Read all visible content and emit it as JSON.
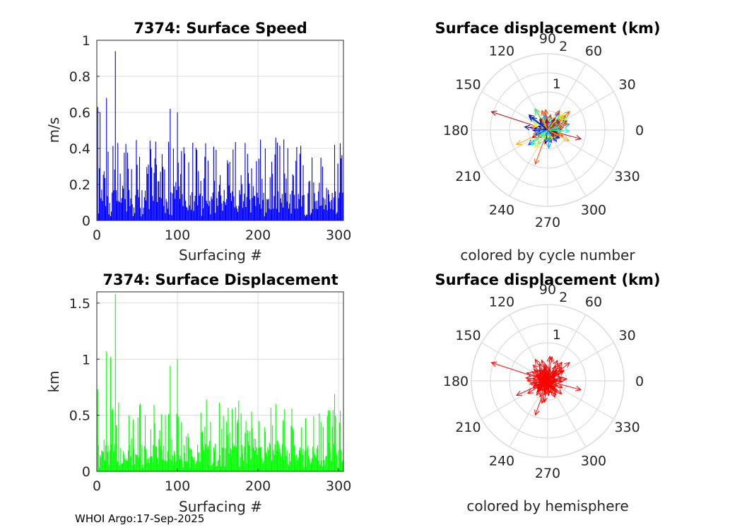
{
  "footer": "WHOI Argo:17-Sep-2025",
  "colors": {
    "speed_bars": "#0000ff",
    "displacement_bars": "#00ff00",
    "hemisphere_arrows": "#ff0000",
    "grid": "#dcdcdc",
    "axis": "#262626",
    "cycle_colormap": [
      "#0000aa",
      "#0044ff",
      "#00aaff",
      "#00ffcc",
      "#88ff44",
      "#ffee00",
      "#ffaa00",
      "#ff4400",
      "#cc0000"
    ]
  },
  "chart_data": [
    {
      "id": "speed",
      "type": "bar",
      "title": "7374: Surface Speed",
      "xlabel": "Surfacing #",
      "ylabel": "m/s",
      "xlim": [
        0,
        306
      ],
      "ylim": [
        0,
        1
      ],
      "xticks": [
        0,
        100,
        200,
        300
      ],
      "xtick_labels": [
        "0",
        "100",
        "200",
        "300"
      ],
      "yticks": [
        0,
        0.2,
        0.4,
        0.6,
        0.8,
        1
      ],
      "ytick_labels": [
        "0",
        "0.2",
        "0.4",
        "0.6",
        "0.8",
        "1"
      ],
      "grid": true,
      "highlight_values": [
        {
          "x": 1,
          "y": 0.63
        },
        {
          "x": 4,
          "y": 0.6
        },
        {
          "x": 12,
          "y": 0.68
        },
        {
          "x": 23,
          "y": 0.94
        },
        {
          "x": 91,
          "y": 0.62
        },
        {
          "x": 100,
          "y": 0.6
        },
        {
          "x": 145,
          "y": 0.41
        },
        {
          "x": 222,
          "y": 0.46
        },
        {
          "x": 295,
          "y": 0.42
        }
      ],
      "typical_range": [
        0.02,
        0.45
      ],
      "note": "306 bars, one per surfacing"
    },
    {
      "id": "displacement",
      "type": "bar",
      "title": "7374: Surface Displacement",
      "xlabel": "Surfacing #",
      "ylabel": "km",
      "xlim": [
        0,
        306
      ],
      "ylim": [
        0,
        1.6
      ],
      "xticks": [
        0,
        100,
        200,
        300
      ],
      "xtick_labels": [
        "0",
        "100",
        "200",
        "300"
      ],
      "yticks": [
        0,
        0.5,
        1,
        1.5
      ],
      "ytick_labels": [
        "0",
        "0.5",
        "1",
        "1.5"
      ],
      "grid": true,
      "highlight_values": [
        {
          "x": 1,
          "y": 0.73
        },
        {
          "x": 12,
          "y": 1.07
        },
        {
          "x": 17,
          "y": 1.02
        },
        {
          "x": 23,
          "y": 1.58
        },
        {
          "x": 91,
          "y": 0.94
        },
        {
          "x": 100,
          "y": 1.0
        },
        {
          "x": 222,
          "y": 0.6
        },
        {
          "x": 295,
          "y": 0.69
        }
      ],
      "typical_range": [
        0.03,
        0.65
      ],
      "note": "306 bars, one per surfacing"
    },
    {
      "id": "polar_cycle",
      "type": "polar-quiver",
      "title": "Surface displacement (km)",
      "caption": "colored by cycle number",
      "rlim": [
        0,
        2
      ],
      "radial_tick_labels": [
        "1",
        "2"
      ],
      "angle_ticks": [
        0,
        30,
        60,
        90,
        120,
        150,
        180,
        210,
        240,
        270,
        300,
        330
      ],
      "angle_tick_labels": [
        "0",
        "30",
        "60",
        "90",
        "120",
        "150",
        "180",
        "210",
        "240",
        "270",
        "300",
        "330"
      ],
      "color_mode": "cycle",
      "highlight_vectors": [
        {
          "angle": 162,
          "r": 1.55
        },
        {
          "angle": 250,
          "r": 0.95
        },
        {
          "angle": 205,
          "r": 0.9
        },
        {
          "angle": 345,
          "r": 0.9
        },
        {
          "angle": 40,
          "r": 0.75
        },
        {
          "angle": 120,
          "r": 0.65
        }
      ],
      "vector_count": 306
    },
    {
      "id": "polar_hemisphere",
      "type": "polar-quiver",
      "title": "Surface displacement (km)",
      "caption": "colored by hemisphere",
      "rlim": [
        0,
        2
      ],
      "radial_tick_labels": [
        "1",
        "2"
      ],
      "angle_ticks": [
        0,
        30,
        60,
        90,
        120,
        150,
        180,
        210,
        240,
        270,
        300,
        330
      ],
      "angle_tick_labels": [
        "0",
        "30",
        "60",
        "90",
        "120",
        "150",
        "180",
        "210",
        "240",
        "270",
        "300",
        "330"
      ],
      "color_mode": "hemisphere",
      "highlight_vectors": [
        {
          "angle": 162,
          "r": 1.55
        },
        {
          "angle": 250,
          "r": 0.95
        },
        {
          "angle": 205,
          "r": 0.9
        },
        {
          "angle": 345,
          "r": 0.9
        },
        {
          "angle": 40,
          "r": 0.75
        },
        {
          "angle": 120,
          "r": 0.65
        }
      ],
      "vector_count": 306
    }
  ]
}
